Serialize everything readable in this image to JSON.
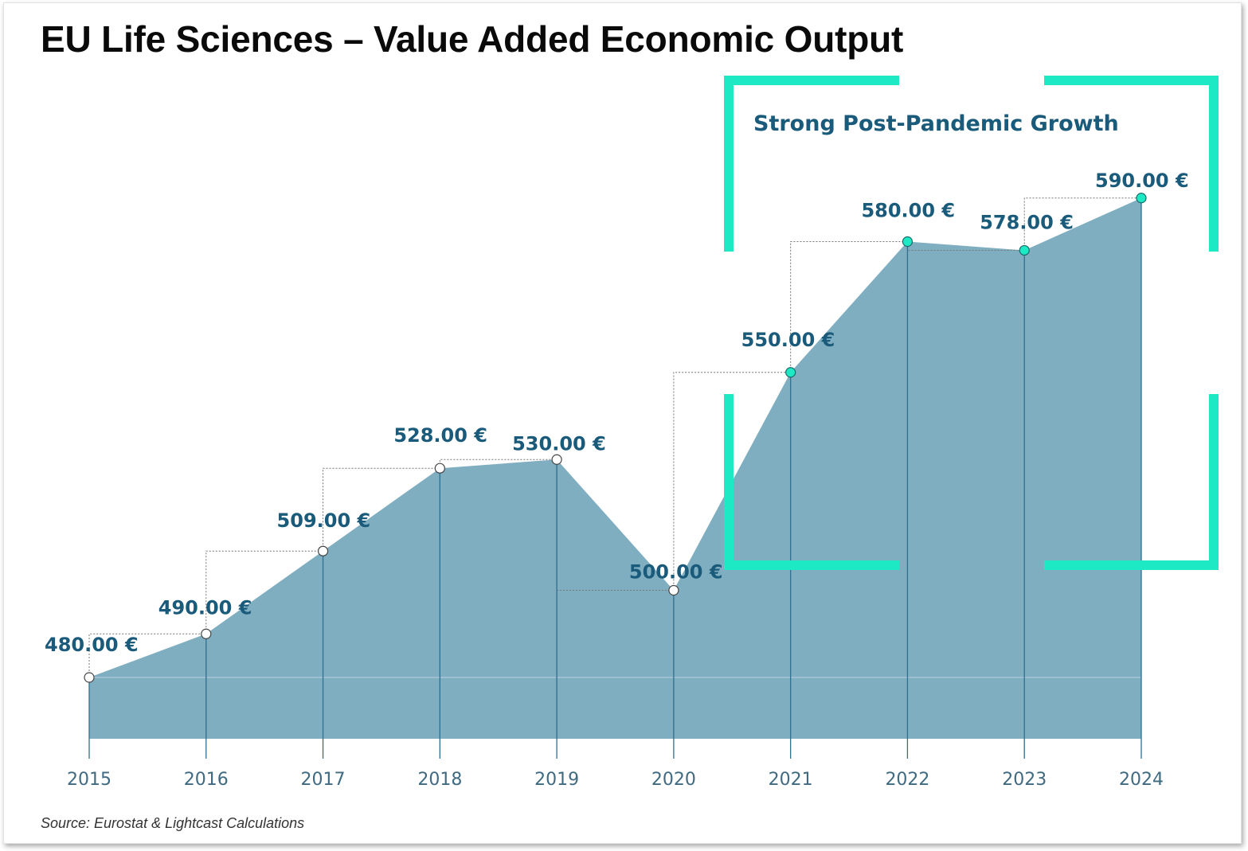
{
  "title": "EU Life Sciences – Value Added Economic Output",
  "source": "Source: Eurostat & Lightcast Calculations",
  "colors": {
    "area": "#80aec1",
    "label": "#1a5a7a",
    "tick": "#3f6a80",
    "stem": "#2f6f8f",
    "highlight": "#1de9c4",
    "marker_default": "#ffffff",
    "marker_highlight": "#1de9c4"
  },
  "chart_data": {
    "type": "area",
    "title": "EU Life Sciences – Value Added Economic Output",
    "x": [
      "2015",
      "2016",
      "2017",
      "2018",
      "2019",
      "2020",
      "2021",
      "2022",
      "2023",
      "2024"
    ],
    "series": [
      {
        "values": [
          480,
          490,
          509,
          528,
          530,
          500,
          550,
          580,
          578,
          590
        ],
        "labels": [
          "480.00 €",
          "490.00 €",
          "509.00 €",
          "528.00 €",
          "530.00 €",
          "500.00 €",
          "550.00 €",
          "580.00 €",
          "578.00 €",
          "590.00 €"
        ]
      }
    ],
    "highlight": {
      "text": "Strong Post-Pandemic Growth",
      "from": "2021",
      "to": "2024"
    },
    "grid": false,
    "legend": "none"
  }
}
